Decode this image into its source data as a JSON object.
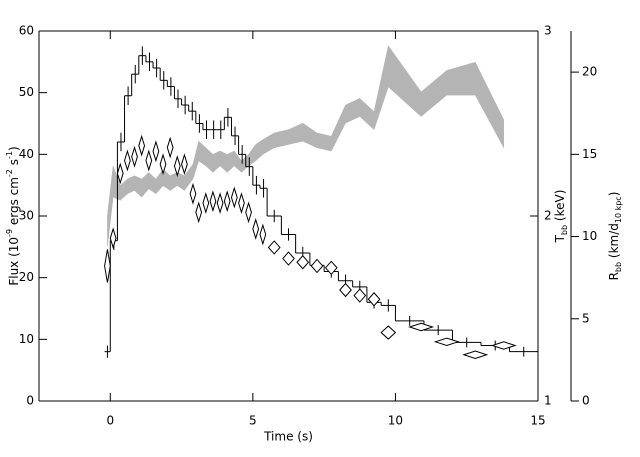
{
  "chart_data": {
    "type": "step",
    "xlabel": "Time (s)",
    "ylabel": [
      {
        "text": "Flux (10"
      },
      {
        "text": "-9",
        "shift": "super"
      },
      {
        "text": " ergs cm"
      },
      {
        "text": "-2",
        "shift": "super"
      },
      {
        "text": " s"
      },
      {
        "text": "-1",
        "shift": "super"
      },
      {
        "text": ")"
      }
    ],
    "y2label": [
      {
        "text": "T"
      },
      {
        "text": "bb",
        "shift": "sub"
      },
      {
        "text": " (keV)"
      }
    ],
    "y3label": [
      {
        "text": "R"
      },
      {
        "text": "bb",
        "shift": "sub"
      },
      {
        "text": " (km/d"
      },
      {
        "text": "10 kpc",
        "shift": "sub"
      },
      {
        "text": ")"
      }
    ],
    "xlim": [
      -2.5,
      15
    ],
    "xticks": [
      0,
      5,
      10,
      15
    ],
    "ylim": [
      0,
      60
    ],
    "yticks": [
      0,
      10,
      20,
      30,
      40,
      50,
      60
    ],
    "y2lim": [
      1,
      3
    ],
    "y2ticks": [
      1,
      2,
      3
    ],
    "y3lim": [
      0,
      22.5
    ],
    "y3ticks": [
      0,
      5,
      10,
      15,
      20
    ],
    "flux": {
      "color": "#000000",
      "edges": [
        -0.2,
        0,
        0.25,
        0.5,
        0.75,
        1,
        1.25,
        1.5,
        1.75,
        2,
        2.25,
        2.5,
        2.75,
        3,
        3.25,
        3.5,
        3.75,
        4,
        4.25,
        4.5,
        4.75,
        5,
        5.25,
        5.5,
        6,
        6.5,
        7,
        7.5,
        8,
        8.5,
        9,
        9.5,
        10,
        11,
        12,
        13,
        14,
        15
      ],
      "values": [
        8,
        26,
        42,
        49.5,
        53,
        56,
        55,
        54,
        52,
        51,
        49,
        48,
        47,
        45,
        44,
        44,
        44,
        46,
        43,
        40,
        38,
        35,
        34.5,
        30,
        27,
        24,
        22,
        21,
        19.5,
        18.5,
        16,
        15.5,
        13,
        11.5,
        9.5,
        9,
        8
      ],
      "errors": [
        1,
        1.5,
        1.5,
        1.5,
        1.5,
        1.5,
        1.5,
        1.5,
        1.5,
        1.5,
        1.5,
        1.5,
        1.5,
        1.5,
        1.5,
        1.5,
        1.5,
        1.5,
        1.5,
        1.5,
        1.5,
        1.5,
        1.5,
        1,
        1,
        1,
        1,
        1,
        1,
        1,
        1,
        1,
        0.8,
        0.8,
        0.8,
        0.8,
        0.8
      ]
    },
    "x": [
      -0.1,
      0.1,
      0.35,
      0.6,
      0.85,
      1.1,
      1.35,
      1.6,
      1.85,
      2.1,
      2.35,
      2.6,
      2.9,
      3.1,
      3.35,
      3.6,
      3.85,
      4.1,
      4.35,
      4.6,
      4.85,
      5.1,
      5.35,
      5.75,
      6.25,
      6.75,
      7.25,
      7.75,
      8.25,
      8.75,
      9.25,
      9.75,
      10.9,
      11.8,
      12.8,
      13.8
    ],
    "temperature": {
      "axis": "y2",
      "color": "#000000",
      "values": [
        1.73,
        1.88,
        2.23,
        2.3,
        2.32,
        2.38,
        2.3,
        2.35,
        2.28,
        2.37,
        2.27,
        2.28,
        2.12,
        2.02,
        2.07,
        2.08,
        2.07,
        2.08,
        2.1,
        2.07,
        2.02,
        1.93,
        1.9,
        1.83,
        1.77,
        1.75,
        1.73,
        1.72,
        1.6,
        1.57,
        1.55,
        1.37,
        1.4,
        1.32,
        1.25,
        1.3
      ],
      "errors": [
        0.09,
        0.05,
        0.05,
        0.05,
        0.05,
        0.05,
        0.05,
        0.05,
        0.05,
        0.05,
        0.05,
        0.05,
        0.05,
        0.05,
        0.05,
        0.05,
        0.05,
        0.05,
        0.05,
        0.05,
        0.05,
        0.05,
        0.05,
        0.035,
        0.035,
        0.035,
        0.035,
        0.035,
        0.035,
        0.035,
        0.035,
        0.035,
        0.02,
        0.02,
        0.02,
        0.02
      ],
      "xerr": [
        0.1,
        0.1,
        0.1,
        0.1,
        0.1,
        0.1,
        0.1,
        0.1,
        0.1,
        0.1,
        0.1,
        0.1,
        0.1,
        0.1,
        0.1,
        0.1,
        0.1,
        0.1,
        0.1,
        0.1,
        0.1,
        0.1,
        0.1,
        0.2,
        0.2,
        0.2,
        0.2,
        0.2,
        0.2,
        0.2,
        0.2,
        0.25,
        0.4,
        0.4,
        0.4,
        0.4
      ]
    },
    "radius": {
      "axis": "y3",
      "color": "#b4b4b4",
      "lower": [
        9.4,
        12.4,
        12.2,
        12.6,
        12.8,
        12.4,
        12.9,
        12.6,
        13.1,
        12.8,
        13.1,
        12.8,
        13.5,
        14.6,
        14.3,
        13.9,
        14.3,
        13.9,
        14.3,
        13.9,
        14.3,
        14.6,
        15.0,
        15.4,
        15.6,
        15.8,
        15.4,
        15.2,
        16.9,
        17.3,
        16.5,
        19.1,
        17.3,
        18.6,
        18.6,
        15.4
      ],
      "upper": [
        11.3,
        14.3,
        13.1,
        13.5,
        13.7,
        13.5,
        13.9,
        13.5,
        14.1,
        13.7,
        13.9,
        13.7,
        14.4,
        15.8,
        15.4,
        15.0,
        15.2,
        15.0,
        15.2,
        14.6,
        15.0,
        15.6,
        15.9,
        16.3,
        16.5,
        16.9,
        16.3,
        16.1,
        18.0,
        18.4,
        17.6,
        21.6,
        18.8,
        20.1,
        20.6,
        17.1
      ]
    }
  }
}
